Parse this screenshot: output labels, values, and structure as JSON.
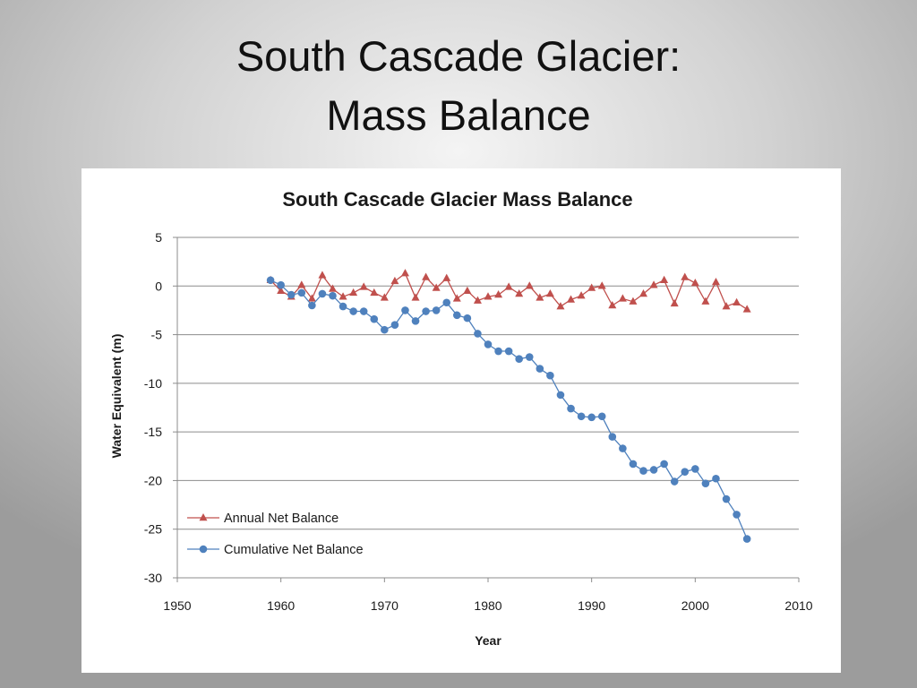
{
  "slide": {
    "title_line1": "South Cascade Glacier:",
    "title_line2": "Mass Balance"
  },
  "chart_data": {
    "type": "line",
    "title": "South Cascade Glacier Mass Balance",
    "xlabel": "Year",
    "ylabel": "Water Equivalent (m)",
    "xlim": [
      1950,
      2010
    ],
    "ylim": [
      -30,
      5
    ],
    "xticks": [
      1950,
      1960,
      1970,
      1980,
      1990,
      2000,
      2010
    ],
    "yticks": [
      5,
      0,
      -5,
      -10,
      -15,
      -20,
      -25,
      -30
    ],
    "grid": "horizontal",
    "legend_position": "bottom-left",
    "series": [
      {
        "name": "Annual Net Balance",
        "color": "#c0504d",
        "marker": "triangle",
        "x": [
          1959,
          1960,
          1961,
          1962,
          1963,
          1964,
          1965,
          1966,
          1967,
          1968,
          1969,
          1970,
          1971,
          1972,
          1973,
          1974,
          1975,
          1976,
          1977,
          1978,
          1979,
          1980,
          1981,
          1982,
          1983,
          1984,
          1985,
          1986,
          1987,
          1988,
          1989,
          1990,
          1991,
          1992,
          1993,
          1994,
          1995,
          1996,
          1997,
          1998,
          1999,
          2000,
          2001,
          2002,
          2003,
          2004,
          2005
        ],
        "y": [
          0.6,
          -0.5,
          -1.1,
          0.1,
          -1.3,
          1.1,
          -0.3,
          -1.1,
          -0.7,
          -0.1,
          -0.7,
          -1.2,
          0.5,
          1.3,
          -1.2,
          0.9,
          -0.2,
          0.8,
          -1.3,
          -0.5,
          -1.5,
          -1.1,
          -0.9,
          -0.1,
          -0.8,
          0.0,
          -1.2,
          -0.8,
          -2.1,
          -1.4,
          -1.0,
          -0.2,
          0.0,
          -2.0,
          -1.3,
          -1.6,
          -0.8,
          0.1,
          0.6,
          -1.8,
          0.9,
          0.3,
          -1.6,
          0.4,
          -2.1,
          -1.7,
          -2.4
        ]
      },
      {
        "name": "Cumulative Net Balance",
        "color": "#4f81bd",
        "marker": "circle",
        "x": [
          1959,
          1960,
          1961,
          1962,
          1963,
          1964,
          1965,
          1966,
          1967,
          1968,
          1969,
          1970,
          1971,
          1972,
          1973,
          1974,
          1975,
          1976,
          1977,
          1978,
          1979,
          1980,
          1981,
          1982,
          1983,
          1984,
          1985,
          1986,
          1987,
          1988,
          1989,
          1990,
          1991,
          1992,
          1993,
          1994,
          1995,
          1996,
          1997,
          1998,
          1999,
          2000,
          2001,
          2002,
          2003,
          2004,
          2005
        ],
        "y": [
          0.6,
          0.1,
          -0.9,
          -0.7,
          -2.0,
          -0.8,
          -1.0,
          -2.1,
          -2.6,
          -2.6,
          -3.4,
          -4.5,
          -4.0,
          -2.5,
          -3.6,
          -2.6,
          -2.5,
          -1.7,
          -3.0,
          -3.3,
          -4.9,
          -6.0,
          -6.7,
          -6.7,
          -7.5,
          -7.3,
          -8.5,
          -9.2,
          -11.2,
          -12.6,
          -13.4,
          -13.5,
          -13.4,
          -15.5,
          -16.7,
          -18.3,
          -19.0,
          -18.9,
          -18.3,
          -20.1,
          -19.1,
          -18.8,
          -20.3,
          -19.8,
          -21.9,
          -23.5,
          -26.0
        ]
      }
    ]
  }
}
